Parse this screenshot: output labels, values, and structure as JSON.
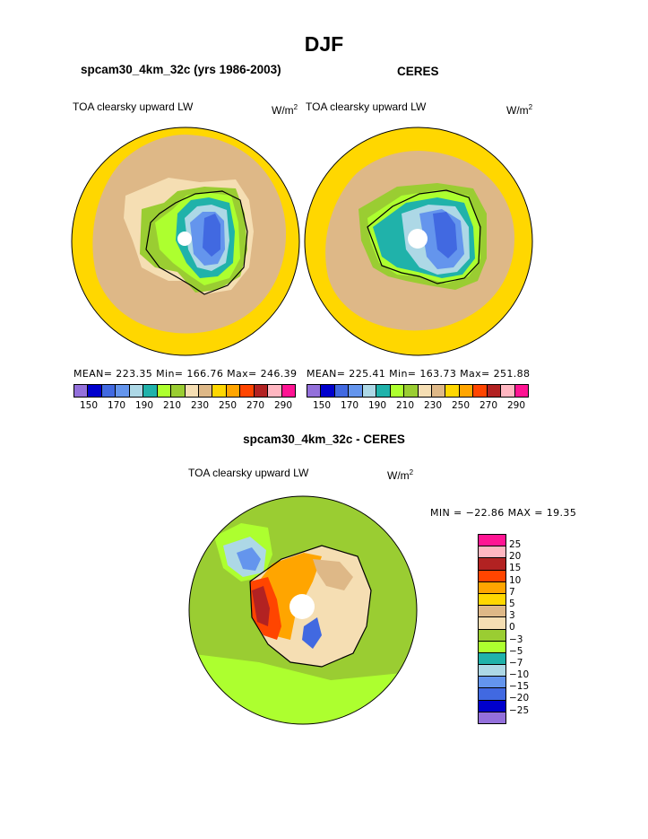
{
  "title": "DJF",
  "left_panel": {
    "case_title": "spcam30_4km_32c (yrs 1986-2003)",
    "variable": "TOA clearsky upward LW",
    "units_base": "W/m",
    "units_exp": "2",
    "stats": "MEAN= 223.35   Min= 166.76   Max= 246.39"
  },
  "right_panel": {
    "case_title": "CERES",
    "variable": "TOA clearsky upward LW",
    "units_base": "W/m",
    "units_exp": "2",
    "stats": "MEAN= 225.41   Min= 163.73   Max= 251.88"
  },
  "diff_panel": {
    "case_title": "spcam30_4km_32c - CERES",
    "variable": "TOA clearsky upward LW",
    "units_base": "W/m",
    "units_exp": "2",
    "minmax": "MIN = −22.86  MAX =   19.35"
  },
  "abs_colorbar": {
    "colors": [
      "#9370db",
      "#0000cd",
      "#4169e1",
      "#6495ed",
      "#add8e6",
      "#20b2aa",
      "#adff2f",
      "#9acd32",
      "#f5deb3",
      "#deb887",
      "#ffd700",
      "#ffa500",
      "#ff4500",
      "#b22222",
      "#ffb6c1",
      "#ff1493"
    ],
    "labels": [
      "150",
      "170",
      "190",
      "210",
      "230",
      "250",
      "270",
      "290"
    ]
  },
  "diff_colorbar": {
    "colors": [
      "#ff1493",
      "#ffb6c1",
      "#b22222",
      "#ff4500",
      "#ffa500",
      "#ffd700",
      "#deb887",
      "#f5deb3",
      "#9acd32",
      "#adff2f",
      "#20b2aa",
      "#add8e6",
      "#6495ed",
      "#4169e1",
      "#0000cd",
      "#9370db"
    ],
    "labels": [
      "25",
      "20",
      "15",
      "10",
      "7",
      "5",
      "3",
      "0",
      "−3",
      "−5",
      "−7",
      "−10",
      "−15",
      "−20",
      "−25"
    ]
  }
}
